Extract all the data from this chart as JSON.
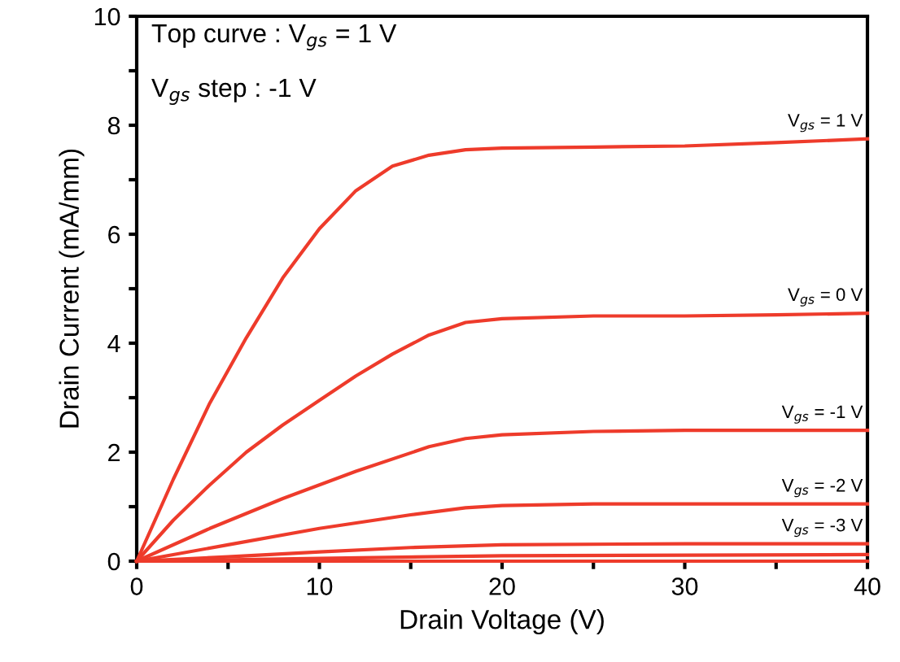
{
  "chart_data": {
    "type": "line",
    "xlabel": "Drain Voltage (V)",
    "ylabel": "Drain Current (mA/mm)",
    "xlim": [
      0,
      40
    ],
    "ylim": [
      0,
      10
    ],
    "xticks": [
      0,
      {
        "value": 5,
        "label": null
      },
      10,
      {
        "value": 15,
        "label": null
      },
      20,
      {
        "value": 25,
        "label": null
      },
      30,
      {
        "value": 35,
        "label": null
      },
      40
    ],
    "yticks": [
      0,
      {
        "value": 1,
        "label": null
      },
      2,
      {
        "value": 3,
        "label": null
      },
      4,
      {
        "value": 5,
        "label": null
      },
      6,
      {
        "value": 7,
        "label": null
      },
      8,
      {
        "value": 9,
        "label": null
      },
      10
    ],
    "grid": false,
    "legend": false,
    "marker": "none",
    "line_style": "solid",
    "annotations": [
      "Top curve : V$_{gs}$ = 1 V",
      "V$_{gs}$ step : -1 V"
    ],
    "series": [
      {
        "name": "V$_{gs}$ = 1 V",
        "color": "#ee3b2b",
        "x": [
          0,
          2,
          4,
          6,
          8,
          10,
          12,
          14,
          16,
          18,
          20,
          25,
          30,
          35,
          40
        ],
        "values": [
          0,
          1.5,
          2.9,
          4.1,
          5.2,
          6.1,
          6.8,
          7.25,
          7.45,
          7.55,
          7.58,
          7.6,
          7.62,
          7.68,
          7.75
        ]
      },
      {
        "name": "V$_{gs}$ = 0 V",
        "color": "#ee3b2b",
        "x": [
          0,
          2,
          4,
          6,
          8,
          10,
          12,
          14,
          16,
          18,
          20,
          25,
          30,
          35,
          40
        ],
        "values": [
          0,
          0.75,
          1.4,
          2.0,
          2.5,
          2.95,
          3.4,
          3.8,
          4.15,
          4.38,
          4.45,
          4.5,
          4.5,
          4.52,
          4.55
        ]
      },
      {
        "name": "V$_{gs}$ = -1 V",
        "color": "#ee3b2b",
        "x": [
          0,
          4,
          8,
          12,
          16,
          18,
          20,
          25,
          30,
          40
        ],
        "values": [
          0,
          0.6,
          1.15,
          1.65,
          2.1,
          2.25,
          2.32,
          2.38,
          2.4,
          2.4
        ]
      },
      {
        "name": "V$_{gs}$ = -2 V",
        "color": "#ee3b2b",
        "x": [
          0,
          5,
          10,
          15,
          18,
          20,
          25,
          30,
          40
        ],
        "values": [
          0,
          0.3,
          0.6,
          0.85,
          0.98,
          1.02,
          1.05,
          1.05,
          1.05
        ]
      },
      {
        "name": "V$_{gs}$ = -3 V",
        "color": "#ee3b2b",
        "x": [
          0,
          5,
          10,
          15,
          20,
          30,
          40
        ],
        "values": [
          0,
          0.08,
          0.17,
          0.25,
          0.3,
          0.32,
          0.32
        ]
      },
      {
        "color": "#ee3b2b",
        "x": [
          0,
          10,
          20,
          40
        ],
        "values": [
          0,
          0.05,
          0.1,
          0.12
        ]
      },
      {
        "color": "#ee3b2b",
        "x": [
          0,
          40
        ],
        "values": [
          0,
          0
        ]
      }
    ]
  }
}
